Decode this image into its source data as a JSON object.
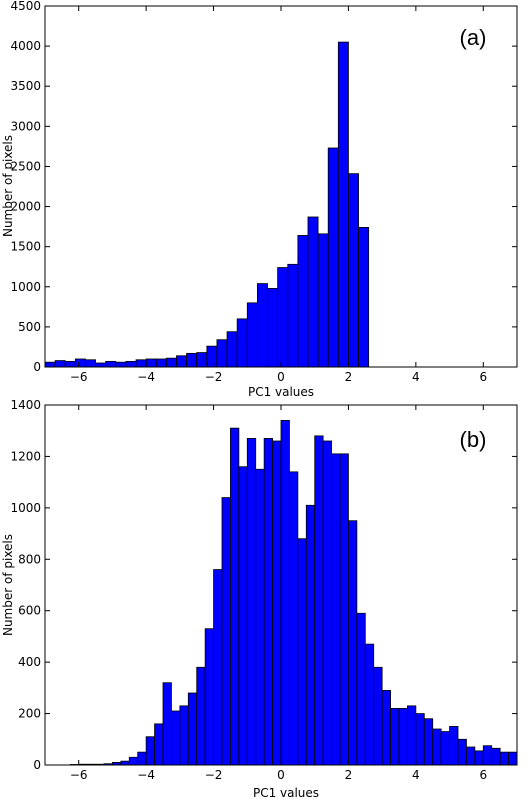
{
  "chart_data": [
    {
      "type": "bar",
      "panel_label": "(a)",
      "xlabel": "PC1 values",
      "ylabel": "Number of pixels",
      "xlim": [
        -7,
        7
      ],
      "ylim": [
        0,
        4500
      ],
      "xticks": [
        -6,
        -4,
        -2,
        0,
        2,
        4,
        6
      ],
      "xtick_labels": [
        "−6",
        "−4",
        "−2",
        "0",
        "2",
        "4",
        "6"
      ],
      "yticks": [
        0,
        500,
        1000,
        1500,
        2000,
        2500,
        3000,
        3500,
        4000,
        4500
      ],
      "ytick_labels": [
        "0",
        "500",
        "1000",
        "1500",
        "2000",
        "2500",
        "3000",
        "3500",
        "4000",
        "4500"
      ],
      "bin_edges_start": -7.0,
      "bin_width": 0.3,
      "values": [
        60,
        80,
        70,
        100,
        90,
        50,
        70,
        60,
        70,
        90,
        100,
        100,
        110,
        140,
        170,
        180,
        260,
        340,
        440,
        600,
        800,
        1040,
        980,
        1240,
        1280,
        1640,
        1870,
        1660,
        2730,
        4050,
        2410,
        1740
      ],
      "color": "#0000ff"
    },
    {
      "type": "bar",
      "panel_label": "(b)",
      "xlabel": "PC1 values",
      "ylabel": "Number of pixels",
      "xlim": [
        -7,
        7
      ],
      "ylim": [
        0,
        1400
      ],
      "xticks": [
        -6,
        -4,
        -2,
        0,
        2,
        4,
        6
      ],
      "xtick_labels": [
        "−6",
        "−4",
        "−2",
        "0",
        "2",
        "4",
        "6"
      ],
      "yticks": [
        0,
        200,
        400,
        600,
        800,
        1000,
        1200,
        1400
      ],
      "ytick_labels": [
        "0",
        "200",
        "400",
        "600",
        "800",
        "1000",
        "1200",
        "1400"
      ],
      "bin_edges_start": -7.0,
      "bin_width": 0.25,
      "values": [
        0,
        0,
        0,
        2,
        3,
        3,
        3,
        5,
        10,
        15,
        30,
        50,
        110,
        160,
        320,
        210,
        230,
        280,
        380,
        530,
        760,
        1040,
        1310,
        1160,
        1270,
        1150,
        1270,
        1260,
        1340,
        1140,
        880,
        1010,
        1280,
        1260,
        1210,
        1210,
        950,
        590,
        470,
        380,
        290,
        220,
        220,
        230,
        200,
        180,
        140,
        130,
        150,
        100,
        70,
        55,
        75,
        65,
        50,
        50,
        50,
        45
      ],
      "color": "#0000ff"
    }
  ]
}
